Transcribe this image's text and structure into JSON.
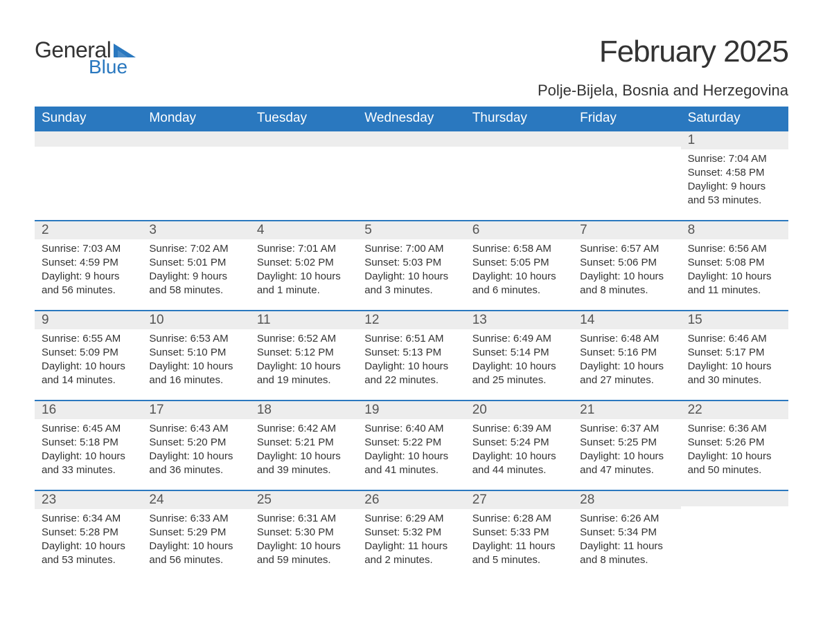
{
  "logo": {
    "text1": "General",
    "text2": "Blue",
    "triangle_color": "#2a78bf"
  },
  "title": "February 2025",
  "location": "Polje-Bijela, Bosnia and Herzegovina",
  "colors": {
    "header_bg": "#2a78bf",
    "header_text": "#ffffff",
    "daynum_bg": "#ededed",
    "row_divider": "#2a78bf",
    "body_text": "#333333",
    "page_bg": "#ffffff"
  },
  "typography": {
    "title_fontsize": 44,
    "location_fontsize": 22,
    "dow_fontsize": 19,
    "daynum_fontsize": 19,
    "detail_fontsize": 15
  },
  "days_of_week": [
    "Sunday",
    "Monday",
    "Tuesday",
    "Wednesday",
    "Thursday",
    "Friday",
    "Saturday"
  ],
  "weeks": [
    [
      {
        "empty": true
      },
      {
        "empty": true
      },
      {
        "empty": true
      },
      {
        "empty": true
      },
      {
        "empty": true
      },
      {
        "empty": true
      },
      {
        "num": "1",
        "sunrise": "Sunrise: 7:04 AM",
        "sunset": "Sunset: 4:58 PM",
        "daylight": "Daylight: 9 hours and 53 minutes."
      }
    ],
    [
      {
        "num": "2",
        "sunrise": "Sunrise: 7:03 AM",
        "sunset": "Sunset: 4:59 PM",
        "daylight": "Daylight: 9 hours and 56 minutes."
      },
      {
        "num": "3",
        "sunrise": "Sunrise: 7:02 AM",
        "sunset": "Sunset: 5:01 PM",
        "daylight": "Daylight: 9 hours and 58 minutes."
      },
      {
        "num": "4",
        "sunrise": "Sunrise: 7:01 AM",
        "sunset": "Sunset: 5:02 PM",
        "daylight": "Daylight: 10 hours and 1 minute."
      },
      {
        "num": "5",
        "sunrise": "Sunrise: 7:00 AM",
        "sunset": "Sunset: 5:03 PM",
        "daylight": "Daylight: 10 hours and 3 minutes."
      },
      {
        "num": "6",
        "sunrise": "Sunrise: 6:58 AM",
        "sunset": "Sunset: 5:05 PM",
        "daylight": "Daylight: 10 hours and 6 minutes."
      },
      {
        "num": "7",
        "sunrise": "Sunrise: 6:57 AM",
        "sunset": "Sunset: 5:06 PM",
        "daylight": "Daylight: 10 hours and 8 minutes."
      },
      {
        "num": "8",
        "sunrise": "Sunrise: 6:56 AM",
        "sunset": "Sunset: 5:08 PM",
        "daylight": "Daylight: 10 hours and 11 minutes."
      }
    ],
    [
      {
        "num": "9",
        "sunrise": "Sunrise: 6:55 AM",
        "sunset": "Sunset: 5:09 PM",
        "daylight": "Daylight: 10 hours and 14 minutes."
      },
      {
        "num": "10",
        "sunrise": "Sunrise: 6:53 AM",
        "sunset": "Sunset: 5:10 PM",
        "daylight": "Daylight: 10 hours and 16 minutes."
      },
      {
        "num": "11",
        "sunrise": "Sunrise: 6:52 AM",
        "sunset": "Sunset: 5:12 PM",
        "daylight": "Daylight: 10 hours and 19 minutes."
      },
      {
        "num": "12",
        "sunrise": "Sunrise: 6:51 AM",
        "sunset": "Sunset: 5:13 PM",
        "daylight": "Daylight: 10 hours and 22 minutes."
      },
      {
        "num": "13",
        "sunrise": "Sunrise: 6:49 AM",
        "sunset": "Sunset: 5:14 PM",
        "daylight": "Daylight: 10 hours and 25 minutes."
      },
      {
        "num": "14",
        "sunrise": "Sunrise: 6:48 AM",
        "sunset": "Sunset: 5:16 PM",
        "daylight": "Daylight: 10 hours and 27 minutes."
      },
      {
        "num": "15",
        "sunrise": "Sunrise: 6:46 AM",
        "sunset": "Sunset: 5:17 PM",
        "daylight": "Daylight: 10 hours and 30 minutes."
      }
    ],
    [
      {
        "num": "16",
        "sunrise": "Sunrise: 6:45 AM",
        "sunset": "Sunset: 5:18 PM",
        "daylight": "Daylight: 10 hours and 33 minutes."
      },
      {
        "num": "17",
        "sunrise": "Sunrise: 6:43 AM",
        "sunset": "Sunset: 5:20 PM",
        "daylight": "Daylight: 10 hours and 36 minutes."
      },
      {
        "num": "18",
        "sunrise": "Sunrise: 6:42 AM",
        "sunset": "Sunset: 5:21 PM",
        "daylight": "Daylight: 10 hours and 39 minutes."
      },
      {
        "num": "19",
        "sunrise": "Sunrise: 6:40 AM",
        "sunset": "Sunset: 5:22 PM",
        "daylight": "Daylight: 10 hours and 41 minutes."
      },
      {
        "num": "20",
        "sunrise": "Sunrise: 6:39 AM",
        "sunset": "Sunset: 5:24 PM",
        "daylight": "Daylight: 10 hours and 44 minutes."
      },
      {
        "num": "21",
        "sunrise": "Sunrise: 6:37 AM",
        "sunset": "Sunset: 5:25 PM",
        "daylight": "Daylight: 10 hours and 47 minutes."
      },
      {
        "num": "22",
        "sunrise": "Sunrise: 6:36 AM",
        "sunset": "Sunset: 5:26 PM",
        "daylight": "Daylight: 10 hours and 50 minutes."
      }
    ],
    [
      {
        "num": "23",
        "sunrise": "Sunrise: 6:34 AM",
        "sunset": "Sunset: 5:28 PM",
        "daylight": "Daylight: 10 hours and 53 minutes."
      },
      {
        "num": "24",
        "sunrise": "Sunrise: 6:33 AM",
        "sunset": "Sunset: 5:29 PM",
        "daylight": "Daylight: 10 hours and 56 minutes."
      },
      {
        "num": "25",
        "sunrise": "Sunrise: 6:31 AM",
        "sunset": "Sunset: 5:30 PM",
        "daylight": "Daylight: 10 hours and 59 minutes."
      },
      {
        "num": "26",
        "sunrise": "Sunrise: 6:29 AM",
        "sunset": "Sunset: 5:32 PM",
        "daylight": "Daylight: 11 hours and 2 minutes."
      },
      {
        "num": "27",
        "sunrise": "Sunrise: 6:28 AM",
        "sunset": "Sunset: 5:33 PM",
        "daylight": "Daylight: 11 hours and 5 minutes."
      },
      {
        "num": "28",
        "sunrise": "Sunrise: 6:26 AM",
        "sunset": "Sunset: 5:34 PM",
        "daylight": "Daylight: 11 hours and 8 minutes."
      },
      {
        "empty": true
      }
    ]
  ]
}
